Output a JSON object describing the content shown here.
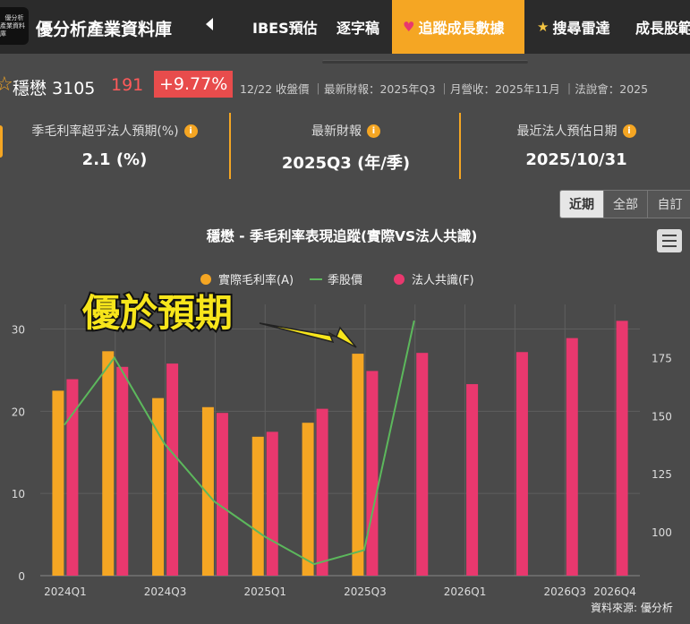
{
  "nav": {
    "logo_line1": "優分析",
    "logo_line2": "產業資料庫",
    "brand": "優分析產業資料庫",
    "tabs": [
      {
        "label": "IBES預估",
        "icon": ""
      },
      {
        "label": "逐字稿",
        "icon": ""
      },
      {
        "label": "追蹤成長數據",
        "icon": "heart-icon"
      },
      {
        "label": "搜尋雷達",
        "icon": "star-icon"
      },
      {
        "label": "成長股範",
        "icon": ""
      }
    ]
  },
  "stock": {
    "name": "穩懋 3105",
    "price": "191",
    "change": "+9.77%",
    "info": "12/22 收盤價 ｜最新財報：2025年Q3 ｜月營收：2025年11月 ｜法說會：2025"
  },
  "cards": [
    {
      "label": "季毛利率超乎法人預期(%)",
      "value": "2.1 (%)"
    },
    {
      "label": "最新財報",
      "value": "2025Q3 (年/季)"
    },
    {
      "label": "最近法人預估日期",
      "value": "2025/10/31"
    }
  ],
  "range": {
    "options": [
      "近期",
      "全部",
      "自訂"
    ],
    "active": "近期"
  },
  "colors": {
    "actual": "#f5a623",
    "price": "#5cb85c",
    "forecast": "#e9386e",
    "accent": "#f5a623"
  },
  "annotation": "優於預期",
  "source": "資料來源: 優分析",
  "chart_data": {
    "type": "bar",
    "title": "穩懋 - 季毛利率表現追蹤(實際VS法人共識)",
    "legend": [
      "實際毛利率(A)",
      "季股價",
      "法人共識(F)"
    ],
    "legend_placement": "top",
    "categories": [
      "2024Q1",
      "2024Q2",
      "2024Q3",
      "2024Q4",
      "2025Q1",
      "2025Q2",
      "2025Q3",
      "2025Q4",
      "2026Q1",
      "2026Q2",
      "2026Q3",
      "2026Q4"
    ],
    "x_tick_labels": [
      "2024Q1",
      "",
      "2024Q3",
      "",
      "2025Q1",
      "",
      "2025Q3",
      "",
      "2026Q1",
      "",
      "2026Q3",
      "2026Q4"
    ],
    "series": [
      {
        "name": "實際毛利率(A)",
        "type": "bar",
        "axis": "left",
        "values": [
          22.5,
          27.3,
          21.6,
          20.5,
          16.9,
          18.6,
          27.0,
          null,
          null,
          null,
          null,
          null
        ]
      },
      {
        "name": "法人共識(F)",
        "type": "bar",
        "axis": "left",
        "values": [
          23.9,
          25.4,
          25.8,
          19.8,
          17.5,
          20.3,
          24.9,
          27.1,
          23.3,
          27.2,
          28.9,
          31.0
        ]
      },
      {
        "name": "季股價",
        "type": "line",
        "axis": "right",
        "values": [
          146,
          175,
          138,
          113,
          98,
          86,
          92,
          191,
          null,
          null,
          null,
          null
        ]
      }
    ],
    "ylim_left": [
      0,
      33
    ],
    "yticks_left": [
      0,
      10,
      20,
      30
    ],
    "ylim_right": [
      81,
      198
    ],
    "yticks_right": [
      100,
      125,
      150,
      175
    ],
    "grid": true
  }
}
